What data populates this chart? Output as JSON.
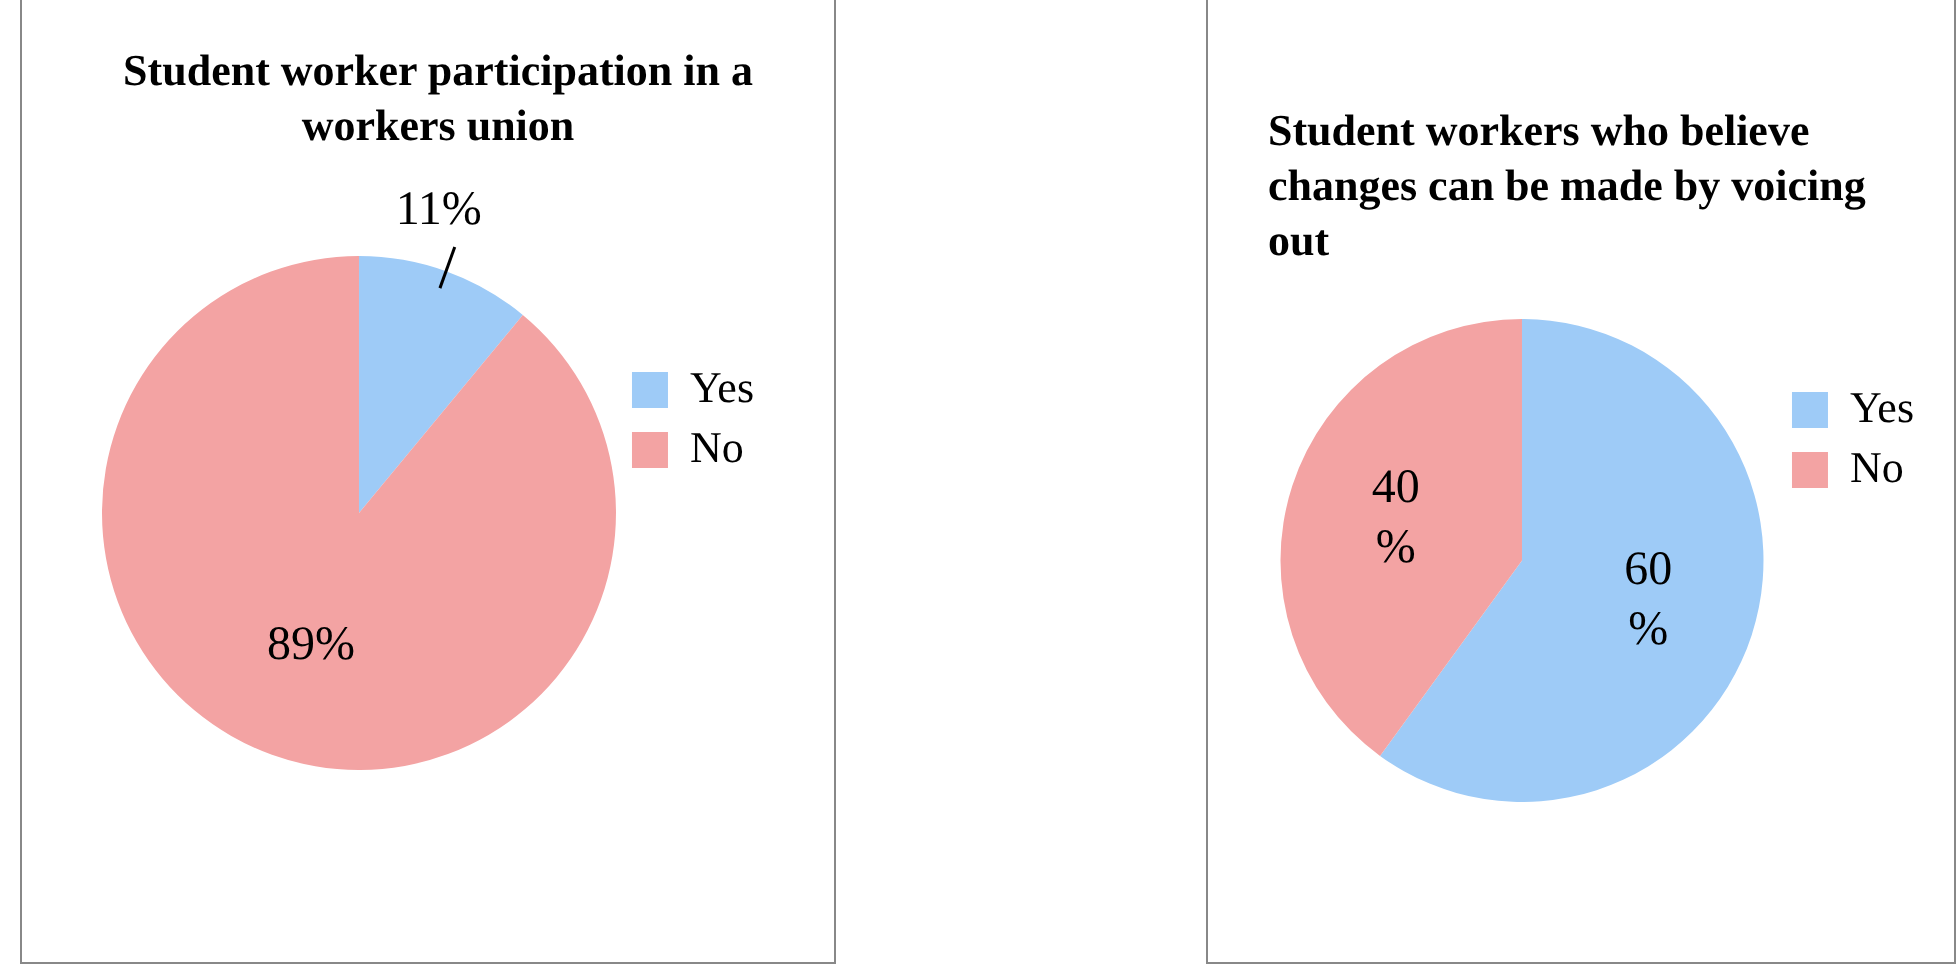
{
  "chart_data": [
    {
      "type": "pie",
      "title": "Student worker participation in a workers union",
      "categories": [
        "Yes",
        "No"
      ],
      "values": [
        11,
        89
      ],
      "colors": [
        "#9ecbf7",
        "#f3a3a3"
      ],
      "value_labels": [
        "11%",
        "89%"
      ],
      "legend": "right"
    },
    {
      "type": "pie",
      "title": "Student workers who believe changes can be made by voicing out",
      "categories": [
        "Yes",
        "No"
      ],
      "values": [
        60,
        40
      ],
      "colors": [
        "#9ecbf7",
        "#f3a3a3"
      ],
      "value_labels": [
        "60 %",
        "40 %"
      ],
      "legend": "right"
    }
  ]
}
